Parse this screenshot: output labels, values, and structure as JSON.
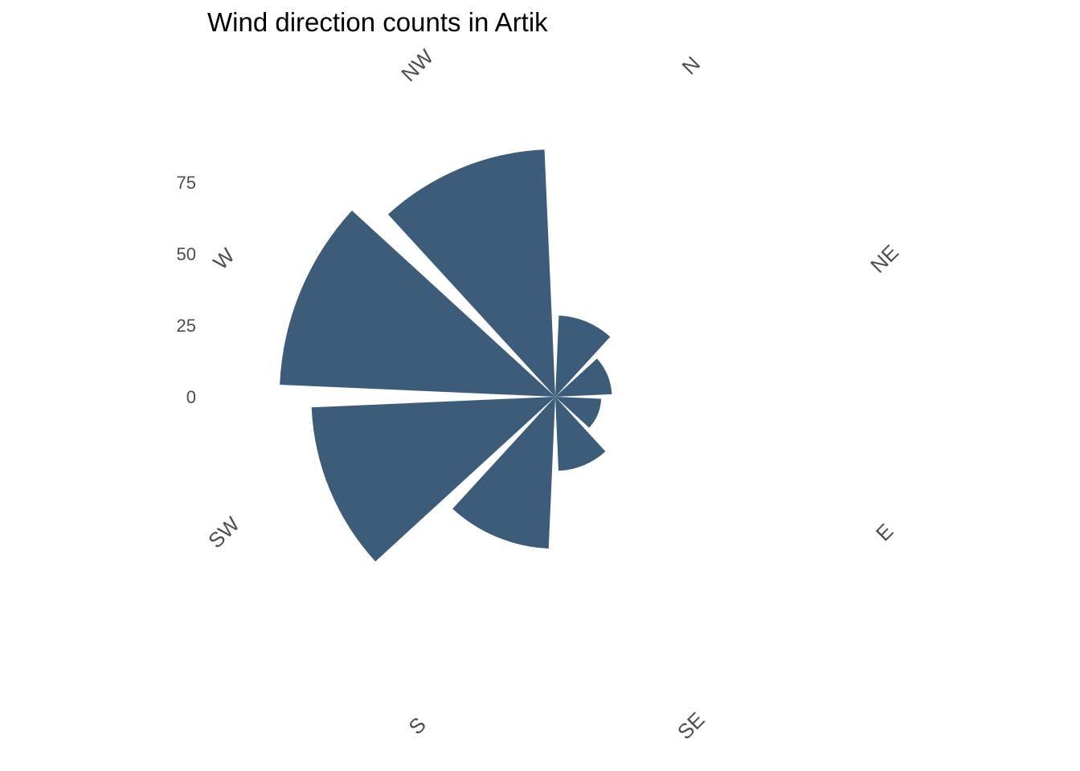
{
  "chart_data": {
    "type": "bar",
    "coord": "polar",
    "title": "Wind direction counts in Artik",
    "categories": [
      "N",
      "NE",
      "E",
      "SE",
      "S",
      "SW",
      "W",
      "NW"
    ],
    "values": [
      23,
      16,
      13,
      21,
      43,
      69,
      78,
      70
    ],
    "yticks": [
      0,
      25,
      50,
      75
    ],
    "ylim": [
      0,
      80
    ],
    "bar_color": "#3d5c7a",
    "text_color": "#4d4d4d",
    "grid": false
  }
}
